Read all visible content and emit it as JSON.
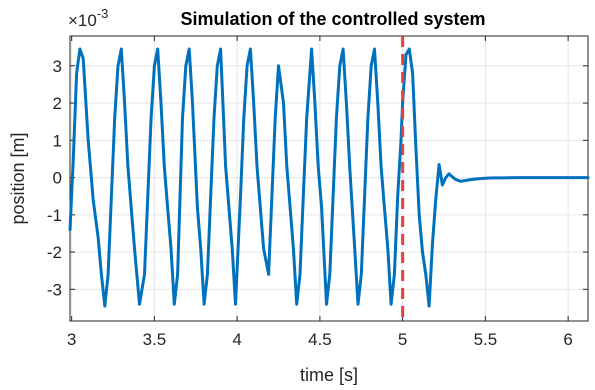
{
  "chart_data": {
    "type": "line",
    "title": "Simulation of the controlled system",
    "xlabel": "time [s]",
    "ylabel": "position [m]",
    "y_exponent_label": "×10",
    "y_exponent_power": "-3",
    "xlim": [
      2.99,
      6.12
    ],
    "ylim": [
      -3.85,
      3.8
    ],
    "xticks": [
      3,
      3.5,
      4,
      4.5,
      5,
      5.5,
      6
    ],
    "xtick_labels": [
      "3",
      "3.5",
      "4",
      "4.5",
      "5",
      "5.5",
      "6"
    ],
    "yticks": [
      -3,
      -2,
      -1,
      0,
      1,
      2,
      3
    ],
    "ytick_labels": [
      "-3",
      "-2",
      "-1",
      "0",
      "1",
      "2",
      "3"
    ],
    "grid": true,
    "vline": {
      "x": 5.0,
      "style": "dashed",
      "color": "#e8403a"
    },
    "series": [
      {
        "color": "#0072bd",
        "x": [
          2.99,
          3.01,
          3.03,
          3.05,
          3.07,
          3.1,
          3.13,
          3.16,
          3.18,
          3.2,
          3.22,
          3.24,
          3.26,
          3.28,
          3.3,
          3.32,
          3.34,
          3.36,
          3.38,
          3.41,
          3.44,
          3.46,
          3.48,
          3.5,
          3.52,
          3.54,
          3.56,
          3.58,
          3.6,
          3.62,
          3.64,
          3.67,
          3.69,
          3.71,
          3.73,
          3.76,
          3.78,
          3.8,
          3.82,
          3.84,
          3.86,
          3.88,
          3.9,
          3.93,
          3.95,
          3.97,
          3.99,
          4.02,
          4.04,
          4.06,
          4.08,
          4.1,
          4.12,
          4.14,
          4.16,
          4.19,
          4.21,
          4.23,
          4.25,
          4.28,
          4.3,
          4.32,
          4.34,
          4.36,
          4.38,
          4.4,
          4.42,
          4.45,
          4.47,
          4.49,
          4.51,
          4.54,
          4.56,
          4.58,
          4.6,
          4.62,
          4.64,
          4.66,
          4.68,
          4.71,
          4.73,
          4.75,
          4.77,
          4.79,
          4.81,
          4.83,
          4.85,
          4.87,
          4.89,
          4.91,
          4.93,
          4.95,
          4.97,
          4.99,
          5.0,
          5.02,
          5.04,
          5.06,
          5.08,
          5.1,
          5.12,
          5.14,
          5.16,
          5.18,
          5.2,
          5.22,
          5.24,
          5.26,
          5.28,
          5.3,
          5.32,
          5.35,
          5.38,
          5.42,
          5.46,
          5.5,
          5.55,
          5.6,
          5.7,
          5.8,
          6.0,
          6.12
        ],
        "y": [
          -1.4,
          0.5,
          2.8,
          3.45,
          3.2,
          1.0,
          -0.6,
          -1.6,
          -2.6,
          -3.45,
          -2.6,
          -0.5,
          1.6,
          3.0,
          3.45,
          2.0,
          0.3,
          -0.8,
          -1.9,
          -3.4,
          -2.6,
          -0.5,
          1.6,
          3.0,
          3.45,
          2.0,
          0.3,
          -0.8,
          -1.9,
          -3.4,
          -2.6,
          1.6,
          3.0,
          3.45,
          2.0,
          -0.8,
          -1.9,
          -3.4,
          -2.6,
          -0.5,
          1.6,
          3.0,
          3.45,
          0.3,
          -0.8,
          -1.9,
          -3.4,
          -0.5,
          1.6,
          3.0,
          3.45,
          2.0,
          0.3,
          -0.8,
          -1.9,
          -2.6,
          -0.5,
          1.6,
          3.0,
          2.0,
          0.3,
          -0.8,
          -1.9,
          -3.4,
          -2.6,
          -0.5,
          1.6,
          3.45,
          2.0,
          0.3,
          -0.8,
          -3.4,
          -2.6,
          -0.5,
          1.6,
          3.0,
          3.45,
          2.0,
          0.3,
          -1.9,
          -3.4,
          -2.6,
          -0.5,
          1.6,
          3.0,
          3.45,
          2.0,
          0.3,
          -0.8,
          -1.9,
          -3.4,
          -2.6,
          -0.5,
          1.0,
          2.0,
          3.3,
          3.45,
          2.8,
          0.8,
          -1.0,
          -2.0,
          -2.6,
          -3.45,
          -1.8,
          -0.6,
          0.35,
          -0.2,
          0.0,
          0.1,
          0.02,
          -0.05,
          -0.1,
          -0.08,
          -0.05,
          -0.03,
          -0.02,
          -0.01,
          -0.01,
          0.0,
          0.0,
          0.0,
          0.0
        ]
      }
    ]
  }
}
